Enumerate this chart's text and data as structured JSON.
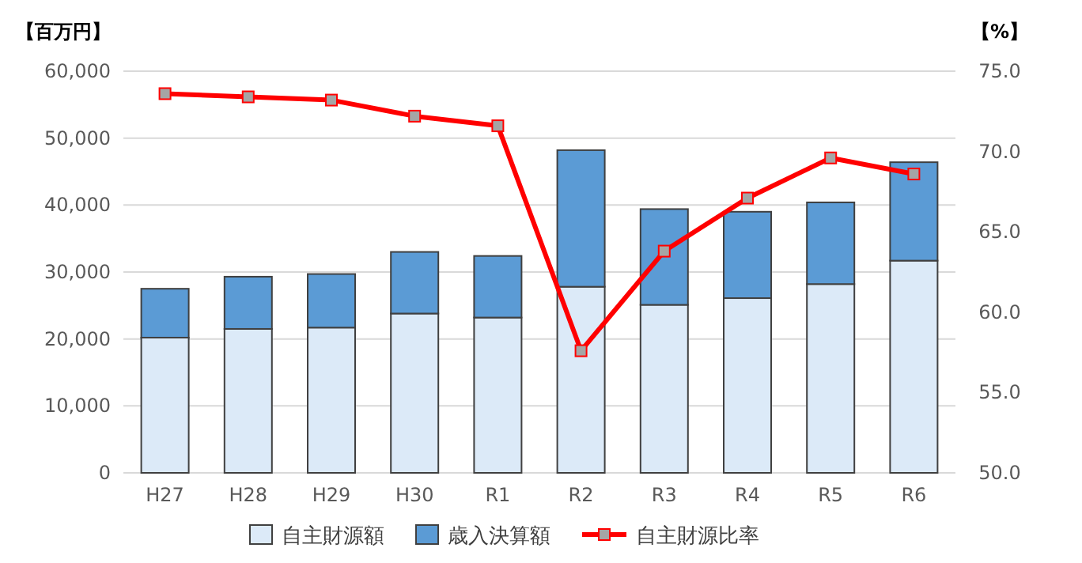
{
  "chart_data": {
    "type": "bar",
    "stacked": true,
    "ylabel": "【百万円】",
    "y2label": "【%】",
    "categories": [
      "H27",
      "H28",
      "H29",
      "H30",
      "R1",
      "R2",
      "R3",
      "R4",
      "R5",
      "R6"
    ],
    "series": [
      {
        "name": "自主財源額",
        "color": "#dceaf8",
        "values": [
          20200,
          21500,
          21700,
          23800,
          23200,
          27800,
          25100,
          26100,
          28200,
          31700
        ]
      },
      {
        "name": "歳入決算額",
        "color": "#5b9bd5",
        "values": [
          7300,
          7800,
          8000,
          9200,
          9200,
          20400,
          14300,
          12900,
          12200,
          14700
        ]
      },
      {
        "name": "自主財源比率",
        "type": "line",
        "axis": "y2",
        "color": "#ff0000",
        "marker": "square",
        "values": [
          73.6,
          73.4,
          73.2,
          72.2,
          71.6,
          57.6,
          63.8,
          67.1,
          69.6,
          68.6
        ]
      }
    ],
    "ylim": [
      0,
      60000
    ],
    "yticks": [
      0,
      {
        "value": 10000,
        "label": "10,000"
      },
      {
        "value": 20000,
        "label": "20,000"
      },
      {
        "value": 30000,
        "label": "30,000"
      },
      {
        "value": 40000,
        "label": "40,000"
      },
      {
        "value": 50000,
        "label": "50,000"
      },
      {
        "value": 60000,
        "label": "60,000"
      }
    ],
    "y2lim": [
      50,
      75
    ],
    "y2ticks": [
      {
        "value": 50,
        "label": "50.0"
      },
      {
        "value": 55,
        "label": "55.0"
      },
      {
        "value": 60,
        "label": "60.0"
      },
      {
        "value": 65,
        "label": "65.0"
      },
      {
        "value": 70,
        "label": "70.0"
      },
      {
        "value": 75,
        "label": "75.0"
      }
    ],
    "grid": "y",
    "legend": "bottom"
  }
}
